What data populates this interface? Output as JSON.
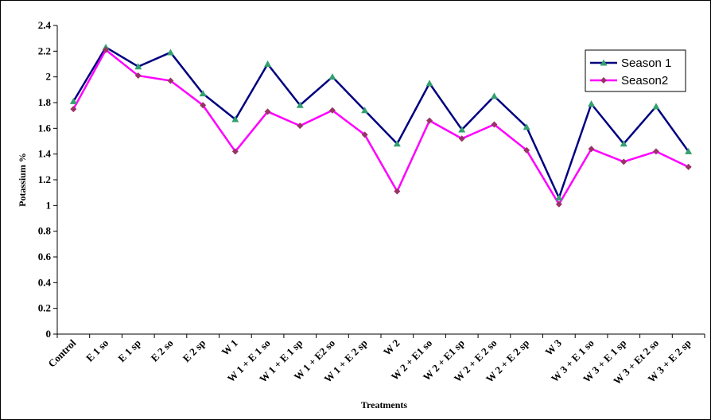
{
  "chart_data": {
    "type": "line",
    "title": "",
    "xlabel": "Treatments",
    "ylabel": "Potassium %",
    "ylim": [
      0,
      2.4
    ],
    "ytick_step": 0.2,
    "grid": false,
    "legend_position": "top-right",
    "categories": [
      "Control",
      "E 1 so",
      "E 1 sp",
      "E 2 so",
      "E 2 sp",
      "W 1",
      "W 1 + E 1 so",
      "W 1 + E 1 sp",
      "W 1 + E2 so",
      "W 1 + E 2 sp",
      "W 2",
      "W 2 + E1 so",
      "W 2 + E1 sp",
      "W 2 + E 2 so",
      "W 2 + E 2 sp",
      "W 3",
      "W 3 + E 1 so",
      "W 3 + E 1 sp",
      "W 3 + Et 2 so",
      "W 3 + E 2 sp"
    ],
    "series": [
      {
        "name": "Season 1",
        "color": "#000080",
        "marker_color": "#33a070",
        "marker": "triangle",
        "values": [
          1.81,
          2.23,
          2.08,
          2.19,
          1.87,
          1.67,
          2.1,
          1.78,
          2.0,
          1.74,
          1.48,
          1.95,
          1.59,
          1.85,
          1.61,
          1.06,
          1.79,
          1.48,
          1.77,
          1.42
        ]
      },
      {
        "name": "Season2",
        "color": "#ff00ff",
        "marker_color": "#993366",
        "marker": "diamond",
        "values": [
          1.75,
          2.21,
          2.01,
          1.97,
          1.78,
          1.42,
          1.73,
          1.62,
          1.74,
          1.55,
          1.11,
          1.66,
          1.52,
          1.63,
          1.43,
          1.01,
          1.44,
          1.34,
          1.42,
          1.3
        ]
      }
    ]
  }
}
